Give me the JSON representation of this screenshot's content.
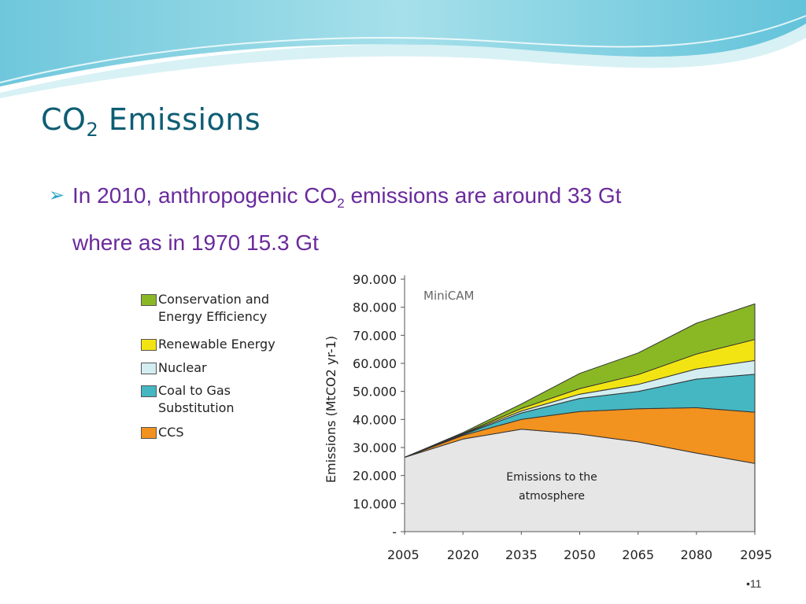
{
  "slide": {
    "title_main": "CO",
    "title_sub": "2",
    "title_rest": " Emissions",
    "bullet_part1": "In 2010, anthropogenic  CO",
    "bullet_sub": "2",
    "bullet_part2": " emissions are around 33 Gt",
    "bullet_line2": "where as in 1970 15.3 Gt",
    "page_number": "•11"
  },
  "colors": {
    "title": "#0e5d73",
    "bullet_text": "#6a2a9c",
    "bullet_arrow": "#2aa3c3",
    "atmosphere": "#e6e6e6",
    "ccs": "#f2921f",
    "coal_to_gas": "#44b7c2",
    "nuclear": "#d3edf1",
    "renewable": "#f2e413",
    "conservation": "#8ab825"
  },
  "chart_data": {
    "type": "area",
    "stacked": true,
    "model_label": "MiniCAM",
    "ylabel": "Emissions (MtCO2 yr-1)",
    "xlabel": "",
    "x": [
      2005,
      2020,
      2035,
      2050,
      2065,
      2080,
      2095
    ],
    "xtick_labels": [
      "2005",
      "2020",
      "2035",
      "2050",
      "2065",
      "2080",
      "2095"
    ],
    "ytick_labels": [
      "-",
      "10.000",
      "20.000",
      "30.000",
      "40.000",
      "50.000",
      "60.000",
      "70.000",
      "80.000",
      "90.000"
    ],
    "ylim": [
      0,
      90000
    ],
    "grid": false,
    "legend_placement": "left",
    "annotation": "Emissions to the atmosphere",
    "series": [
      {
        "name": "Emissions to the atmosphere",
        "color_key": "atmosphere",
        "values": [
          26500,
          33000,
          36500,
          34800,
          32000,
          28000,
          24300
        ]
      },
      {
        "name": "CCS",
        "color_key": "ccs",
        "values": [
          0,
          1300,
          3500,
          8000,
          11800,
          16200,
          18300
        ]
      },
      {
        "name": "Coal to Gas Substitution",
        "color_key": "coal_to_gas",
        "values": [
          0,
          300,
          2300,
          4700,
          6200,
          10200,
          13500
        ]
      },
      {
        "name": "Nuclear",
        "color_key": "nuclear",
        "values": [
          0,
          200,
          700,
          1500,
          2500,
          3600,
          4900
        ]
      },
      {
        "name": "Renewable Energy",
        "color_key": "renewable",
        "values": [
          0,
          200,
          900,
          2000,
          3500,
          5300,
          7500
        ]
      },
      {
        "name": "Conservation and Energy Efficiency",
        "color_key": "conservation",
        "values": [
          0,
          300,
          1600,
          5400,
          7700,
          11000,
          12700
        ]
      }
    ],
    "legend": [
      {
        "label": "Conservation and",
        "label2": "Energy Efficiency",
        "color_key": "conservation"
      },
      {
        "label": "Renewable Energy",
        "label2": "",
        "color_key": "renewable"
      },
      {
        "label": "Nuclear",
        "label2": "",
        "color_key": "nuclear"
      },
      {
        "label": "Coal to Gas",
        "label2": "Substitution",
        "color_key": "coal_to_gas"
      },
      {
        "label": "CCS",
        "label2": "",
        "color_key": "ccs"
      }
    ]
  }
}
